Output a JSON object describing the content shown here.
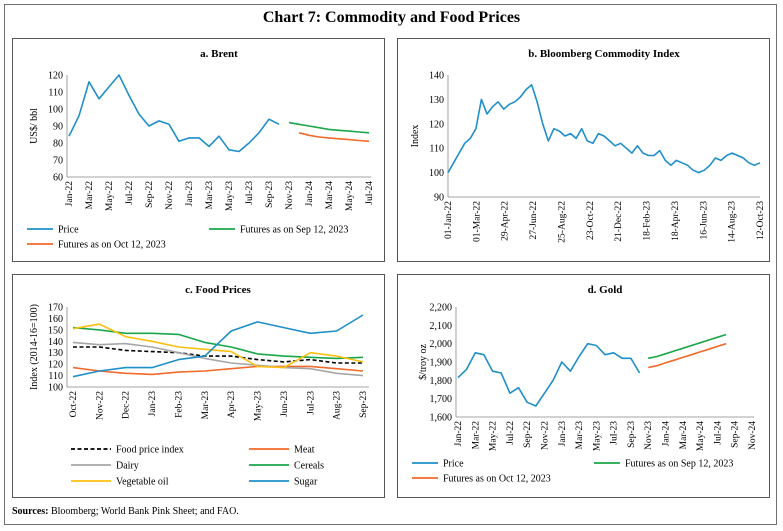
{
  "title": "Chart 7: Commodity and Food Prices",
  "sources_label": "Sources:",
  "sources_text": " Bloomberg; World Bank Pink Sheet; and FAO.",
  "colors": {
    "blue": "#1f8fc9",
    "green": "#1aa64a",
    "orange": "#f06a2a",
    "yellow": "#fdc00f",
    "black": "#000000",
    "gray": "#a6a6a6",
    "red_orange": "#f07030"
  },
  "chart_data": [
    {
      "id": "brent",
      "type": "line",
      "title": "a. Brent",
      "ylabel": "US$/ bbl",
      "ylim": [
        60,
        120
      ],
      "yticks": [
        60,
        70,
        80,
        90,
        100,
        110,
        120
      ],
      "xticks": [
        "Jan-22",
        "Mar-22",
        "May-22",
        "Jul-22",
        "Sep-22",
        "Nov-22",
        "Jan-23",
        "Mar-23",
        "May-23",
        "Jul-23",
        "Sep-23",
        "Nov-23",
        "Jan-24",
        "Mar-24",
        "May-24",
        "Jul-24"
      ],
      "n": 31,
      "series": [
        {
          "name": "Price",
          "color": "#1f8fc9",
          "start": 0,
          "values": [
            84,
            96,
            116,
            106,
            113,
            120,
            108,
            97,
            90,
            93,
            91,
            81,
            83,
            83,
            78,
            84,
            76,
            75,
            80,
            86,
            94,
            91
          ]
        },
        {
          "name": "Futures as on Sep 12, 2023",
          "color": "#1aa64a",
          "start": 22,
          "values": [
            92,
            91,
            90,
            89,
            88,
            87.5,
            87,
            86.5,
            86
          ]
        },
        {
          "name": "Futures as on Oct 12, 2023",
          "color": "#f06a2a",
          "start": 23,
          "values": [
            86,
            84.5,
            83.5,
            83,
            82.5,
            82,
            81.5,
            81
          ]
        }
      ],
      "legend": [
        "Price",
        "Futures as on Sep 12, 2023",
        "Futures as on Oct 12, 2023"
      ]
    },
    {
      "id": "bcom",
      "type": "line",
      "title": "b. Bloomberg Commodity Index",
      "ylabel": "Index",
      "ylim": [
        90,
        140
      ],
      "yticks": [
        90,
        100,
        110,
        120,
        130,
        140
      ],
      "xticks": [
        "01-Jan-22",
        "01-Mar-22",
        "29-Apr-22",
        "27-Jun-22",
        "25-Aug-22",
        "23-Oct-22",
        "21-Dec-22",
        "18-Feb-23",
        "18-Apr-23",
        "16-Jun-23",
        "14-Aug-23",
        "12-Oct-23"
      ],
      "series": [
        {
          "name": "Index",
          "color": "#1f8fc9",
          "values": [
            100,
            104,
            108,
            112,
            114,
            118,
            130,
            124,
            127,
            129,
            126,
            128,
            129,
            131,
            134,
            136,
            129,
            120,
            113,
            118,
            117,
            115,
            116,
            114,
            118,
            113,
            112,
            116,
            115,
            113,
            111,
            112,
            110,
            108,
            111,
            108,
            107,
            107,
            109,
            105,
            103,
            105,
            104,
            103,
            101,
            100,
            101,
            103,
            106,
            105,
            107,
            108,
            107,
            106,
            104,
            103,
            104
          ]
        }
      ]
    },
    {
      "id": "food",
      "type": "line",
      "title": "c. Food Prices",
      "ylabel": "Index (2014-16=100)",
      "ylim": [
        100,
        170
      ],
      "yticks": [
        100,
        110,
        120,
        130,
        140,
        150,
        160,
        170
      ],
      "xticks": [
        "Oct-22",
        "Nov-22",
        "Dec-22",
        "Jan-23",
        "Feb-23",
        "Mar-23",
        "Apr-23",
        "May-23",
        "Jun-23",
        "Jul-23",
        "Aug-23",
        "Sep-23"
      ],
      "series": [
        {
          "name": "Food price index",
          "color": "#000000",
          "dash": true,
          "values": [
            135,
            135,
            132,
            131,
            130,
            127,
            127,
            124,
            122,
            124,
            121,
            121
          ]
        },
        {
          "name": "Meat",
          "color": "#f06a2a",
          "values": [
            117,
            114,
            112,
            111,
            113,
            114,
            116,
            118,
            118,
            118,
            116,
            114
          ]
        },
        {
          "name": "Dairy",
          "color": "#a6a6a6",
          "values": [
            139,
            137,
            138,
            135,
            130,
            125,
            121,
            119,
            117,
            116,
            112,
            110
          ]
        },
        {
          "name": "Cereals",
          "color": "#1aa64a",
          "values": [
            152,
            150,
            147,
            147,
            146,
            139,
            135,
            129,
            127,
            126,
            125,
            126
          ]
        },
        {
          "name": "Vegetable oil",
          "color": "#fdc00f",
          "values": [
            151,
            155,
            144,
            140,
            135,
            133,
            131,
            118,
            117,
            130,
            127,
            122
          ]
        },
        {
          "name": "Sugar",
          "color": "#1f8fc9",
          "values": [
            109,
            114,
            117,
            117,
            124,
            127,
            149,
            157,
            152,
            147,
            149,
            163
          ]
        }
      ],
      "legend": [
        "Food price index",
        "Meat",
        "Dairy",
        "Cereals",
        "Vegetable oil",
        "Sugar"
      ]
    },
    {
      "id": "gold",
      "type": "line",
      "title": "d. Gold",
      "ylabel": "$/troy oz",
      "ylim": [
        1600,
        2200
      ],
      "yticks": [
        "1,600",
        "1,700",
        "1,800",
        "1,900",
        "2,000",
        "2,100",
        "2,200"
      ],
      "xticks": [
        "Jan-22",
        "Mar-22",
        "May-22",
        "Jul-22",
        "Sep-22",
        "Nov-22",
        "Jan-23",
        "Mar-23",
        "May-23",
        "Jul-23",
        "Sep-23",
        "Nov-23",
        "Jan-24",
        "Mar-24",
        "May-24",
        "Jul-24",
        "Sep-24",
        "Nov-24"
      ],
      "n": 35,
      "series": [
        {
          "name": "Price",
          "color": "#1f8fc9",
          "start": 0,
          "values": [
            1815,
            1860,
            1950,
            1940,
            1850,
            1840,
            1730,
            1760,
            1680,
            1660,
            1730,
            1800,
            1900,
            1850,
            1930,
            2000,
            1990,
            1940,
            1950,
            1920,
            1920,
            1840
          ]
        },
        {
          "name": "Futures as on Sep 12, 2023",
          "color": "#1aa64a",
          "start": 22,
          "values": [
            1920,
            1930,
            1945,
            1960,
            1975,
            1990,
            2005,
            2020,
            2035,
            2050
          ]
        },
        {
          "name": "Futures as on Oct 12, 2023",
          "color": "#f06a2a",
          "start": 22,
          "values": [
            1870,
            1880,
            1895,
            1910,
            1925,
            1940,
            1955,
            1970,
            1985,
            2000
          ]
        }
      ],
      "legend": [
        "Price",
        "Futures as on Sep 12, 2023",
        "Futures as on Oct 12, 2023"
      ]
    }
  ]
}
